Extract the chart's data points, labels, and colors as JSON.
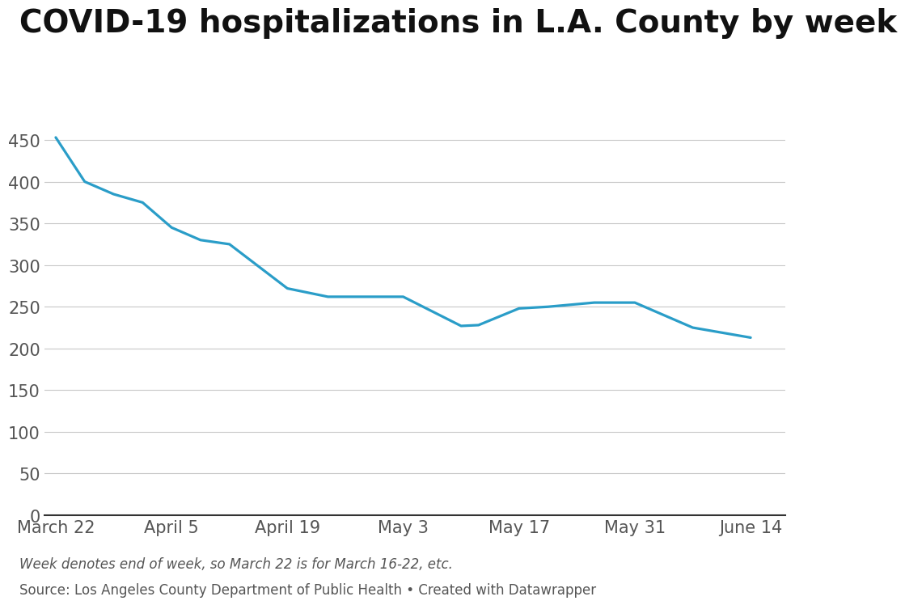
{
  "title": "COVID-19 hospitalizations in L.A. County by week",
  "footnote1": "Week denotes end of week, so March 22 is for March 16-22, etc.",
  "footnote2": "Source: Los Angeles County Department of Public Health • Created with Datawrapper",
  "x_labels": [
    "March 22",
    "April 5",
    "April 19",
    "May 3",
    "May 17",
    "May 31",
    "June 14"
  ],
  "x_positions": [
    0,
    2,
    4,
    6,
    8,
    10,
    12
  ],
  "y_values": [
    453,
    400,
    385,
    375,
    345,
    330,
    325,
    272,
    262,
    262,
    262,
    227,
    228,
    248,
    250,
    255,
    255,
    225,
    213
  ],
  "x_data": [
    0,
    0.5,
    1.0,
    1.5,
    2.0,
    2.5,
    3.0,
    4.0,
    4.7,
    5.3,
    6.0,
    7.0,
    7.3,
    8.0,
    8.5,
    9.3,
    10.0,
    11.0,
    12.0
  ],
  "line_color": "#2a9dc8",
  "line_width": 2.3,
  "background_color": "#ffffff",
  "grid_color": "#c8c8c8",
  "yticks": [
    0,
    50,
    100,
    150,
    200,
    250,
    300,
    350,
    400,
    450
  ],
  "ylim": [
    0,
    475
  ],
  "xlim": [
    -0.2,
    12.6
  ],
  "title_fontsize": 28,
  "tick_fontsize": 15,
  "footnote_fontsize": 12
}
